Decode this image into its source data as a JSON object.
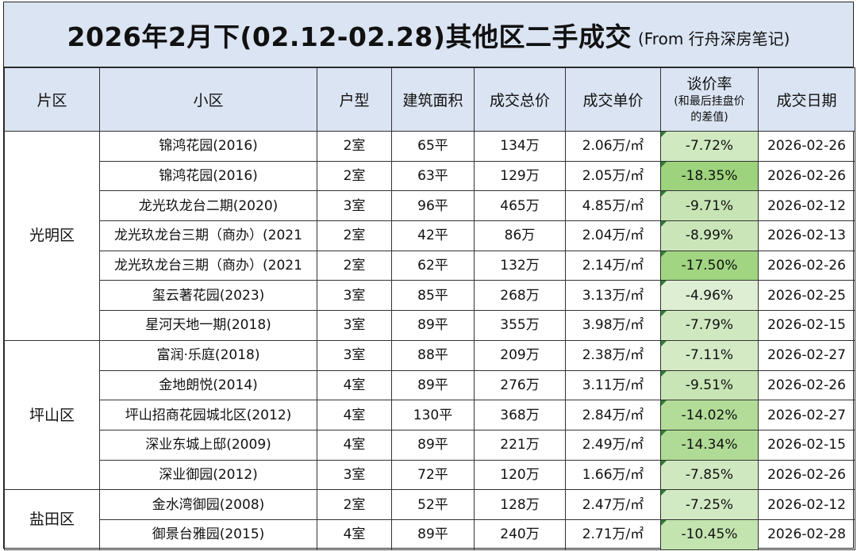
{
  "title": {
    "main": "2026年2月下(02.12-02.28)其他区二手成交",
    "sub": "(From 行舟深房笔记)"
  },
  "headers": {
    "district": "片区",
    "community": "小区",
    "layout": "户型",
    "area": "建筑面积",
    "total_price": "成交总价",
    "unit_price": "成交单价",
    "discount_line1": "谈价率",
    "discount_line2": "(和最后挂盘价",
    "discount_line3": "的差值)",
    "date": "成交日期"
  },
  "groups": [
    {
      "district": "光明区",
      "rows": [
        {
          "community": "锦鸿花园(2016)",
          "layout": "2室",
          "area": "65平",
          "total": "134万",
          "unit": "2.06万/㎡",
          "rate": "-7.72%",
          "date": "2026-02-26"
        },
        {
          "community": "锦鸿花园(2016)",
          "layout": "2室",
          "area": "63平",
          "total": "129万",
          "unit": "2.05万/㎡",
          "rate": "-18.35%",
          "date": "2026-02-26"
        },
        {
          "community": "龙光玖龙台二期(2020)",
          "layout": "3室",
          "area": "96平",
          "total": "465万",
          "unit": "4.85万/㎡",
          "rate": "-9.71%",
          "date": "2026-02-12"
        },
        {
          "community": "龙光玖龙台三期（商办）(2021",
          "layout": "2室",
          "area": "42平",
          "total": "86万",
          "unit": "2.04万/㎡",
          "rate": "-8.99%",
          "date": "2026-02-13"
        },
        {
          "community": "龙光玖龙台三期（商办）(2021",
          "layout": "2室",
          "area": "62平",
          "total": "132万",
          "unit": "2.14万/㎡",
          "rate": "-17.50%",
          "date": "2026-02-26"
        },
        {
          "community": "玺云著花园(2023)",
          "layout": "3室",
          "area": "85平",
          "total": "268万",
          "unit": "3.13万/㎡",
          "rate": "-4.96%",
          "date": "2026-02-25"
        },
        {
          "community": "星河天地一期(2018)",
          "layout": "3室",
          "area": "89平",
          "total": "355万",
          "unit": "3.98万/㎡",
          "rate": "-7.79%",
          "date": "2026-02-15"
        }
      ]
    },
    {
      "district": "坪山区",
      "rows": [
        {
          "community": "富润·乐庭(2018)",
          "layout": "3室",
          "area": "88平",
          "total": "209万",
          "unit": "2.38万/㎡",
          "rate": "-7.11%",
          "date": "2026-02-27"
        },
        {
          "community": "金地朗悦(2014)",
          "layout": "4室",
          "area": "89平",
          "total": "276万",
          "unit": "3.11万/㎡",
          "rate": "-9.51%",
          "date": "2026-02-26"
        },
        {
          "community": "坪山招商花园城北区(2012)",
          "layout": "4室",
          "area": "130平",
          "total": "368万",
          "unit": "2.84万/㎡",
          "rate": "-14.02%",
          "date": "2026-02-27"
        },
        {
          "community": "深业东城上邸(2009)",
          "layout": "4室",
          "area": "89平",
          "total": "221万",
          "unit": "2.49万/㎡",
          "rate": "-14.34%",
          "date": "2026-02-15"
        },
        {
          "community": "深业御园(2012)",
          "layout": "3室",
          "area": "72平",
          "total": "120万",
          "unit": "1.66万/㎡",
          "rate": "-7.85%",
          "date": "2026-02-26"
        }
      ]
    },
    {
      "district": "盐田区",
      "rows": [
        {
          "community": "金水湾御园(2008)",
          "layout": "2室",
          "area": "52平",
          "total": "128万",
          "unit": "2.47万/㎡",
          "rate": "-7.25%",
          "date": "2026-02-12"
        },
        {
          "community": "御景台雅园(2015)",
          "layout": "4室",
          "area": "89平",
          "total": "240万",
          "unit": "2.71万/㎡",
          "rate": "-10.45%",
          "date": "2026-02-28"
        }
      ]
    }
  ]
}
